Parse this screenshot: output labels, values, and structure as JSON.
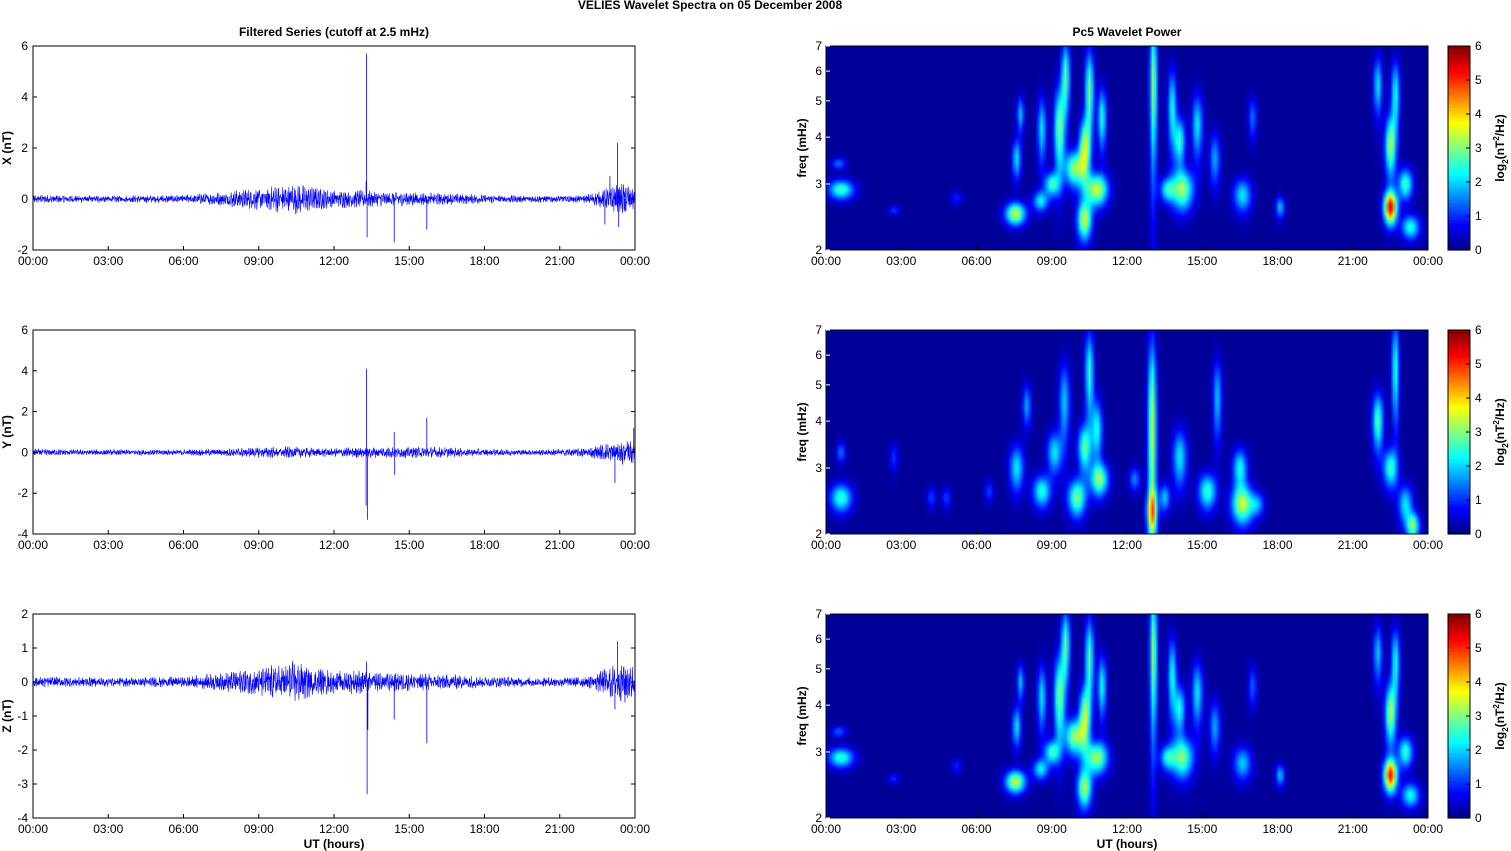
{
  "figure": {
    "suptitle": "VELIES Wavelet Spectra on 05 December  2008",
    "left_title": "Filtered Series (cutoff at 2.5 mHz)",
    "right_title": "Pc5 Wavelet Power",
    "xlabel": "UT (hours)",
    "freq_label": "freq (mHz)",
    "cbar_label_parts": [
      "log",
      "2",
      "(nT",
      "2",
      "/Hz)"
    ]
  },
  "chart_data": [
    {
      "type": "line",
      "title": "Filtered Series (cutoff at 2.5 mHz)",
      "ylabel": "X (nT)",
      "xlim": [
        0,
        24
      ],
      "ylim": [
        -2,
        6
      ],
      "yticks": [
        "-2",
        "0",
        "2",
        "4",
        "6"
      ],
      "xticks": [
        "00:00",
        "03:00",
        "06:00",
        "09:00",
        "12:00",
        "15:00",
        "18:00",
        "21:00",
        "00:00"
      ],
      "color": "#0000ff",
      "envelope": [
        [
          0,
          0.12
        ],
        [
          2,
          0.1
        ],
        [
          4,
          0.1
        ],
        [
          6,
          0.12
        ],
        [
          7.7,
          0.2
        ],
        [
          8,
          0.25
        ],
        [
          9,
          0.3
        ],
        [
          10,
          0.4
        ],
        [
          10.5,
          0.45
        ],
        [
          11,
          0.35
        ],
        [
          12,
          0.25
        ],
        [
          13,
          0.25
        ],
        [
          14,
          0.2
        ],
        [
          15,
          0.2
        ],
        [
          16,
          0.18
        ],
        [
          18,
          0.12
        ],
        [
          20,
          0.1
        ],
        [
          22,
          0.12
        ],
        [
          22.5,
          0.2
        ],
        [
          23,
          0.35
        ],
        [
          23.5,
          0.45
        ],
        [
          24,
          0.35
        ]
      ],
      "spikes": [
        [
          13.3,
          5.7
        ],
        [
          13.32,
          -1.5
        ],
        [
          13.28,
          0.7
        ],
        [
          14.4,
          -1.7
        ],
        [
          15.7,
          -1.2
        ],
        [
          22.8,
          -1
        ],
        [
          23.3,
          2.2
        ],
        [
          23.35,
          -1.1
        ],
        [
          23,
          0.9
        ],
        [
          23.6,
          -0.5
        ]
      ]
    },
    {
      "type": "line",
      "ylabel": "Y (nT)",
      "xlim": [
        0,
        24
      ],
      "ylim": [
        -4,
        6
      ],
      "yticks": [
        "-4",
        "-2",
        "0",
        "2",
        "4",
        "6"
      ],
      "xticks": [
        "00:00",
        "03:00",
        "06:00",
        "09:00",
        "12:00",
        "15:00",
        "18:00",
        "21:00",
        "00:00"
      ],
      "color": "#0000ff",
      "envelope": [
        [
          0,
          0.12
        ],
        [
          2,
          0.1
        ],
        [
          4,
          0.1
        ],
        [
          6,
          0.1
        ],
        [
          8,
          0.15
        ],
        [
          10,
          0.2
        ],
        [
          11,
          0.18
        ],
        [
          12,
          0.15
        ],
        [
          13,
          0.2
        ],
        [
          14,
          0.2
        ],
        [
          16,
          0.2
        ],
        [
          18,
          0.12
        ],
        [
          20,
          0.1
        ],
        [
          22,
          0.15
        ],
        [
          22.8,
          0.3
        ],
        [
          23.5,
          0.4
        ],
        [
          24,
          0.4
        ]
      ],
      "spikes": [
        [
          13.3,
          4.1
        ],
        [
          13.33,
          -3.3
        ],
        [
          13.28,
          -2.6
        ],
        [
          14.4,
          1.0
        ],
        [
          14.42,
          -1.1
        ],
        [
          15.7,
          1.7
        ],
        [
          23.2,
          -1.5
        ],
        [
          23.95,
          1.2
        ],
        [
          23.5,
          -0.6
        ]
      ]
    },
    {
      "type": "line",
      "ylabel": "Z (nT)",
      "xlim": [
        0,
        24
      ],
      "ylim": [
        -4,
        2
      ],
      "yticks": [
        "-4",
        "-3",
        "-2",
        "-1",
        "0",
        "1",
        "2"
      ],
      "xticks": [
        "00:00",
        "03:00",
        "06:00",
        "09:00",
        "12:00",
        "15:00",
        "18:00",
        "21:00",
        "00:00"
      ],
      "xlabel": "UT (hours)",
      "color": "#0000ff",
      "envelope": [
        [
          0,
          0.12
        ],
        [
          2,
          0.1
        ],
        [
          4,
          0.1
        ],
        [
          6,
          0.12
        ],
        [
          7.7,
          0.2
        ],
        [
          8,
          0.25
        ],
        [
          9,
          0.3
        ],
        [
          10,
          0.4
        ],
        [
          10.5,
          0.45
        ],
        [
          11,
          0.35
        ],
        [
          12,
          0.25
        ],
        [
          13,
          0.25
        ],
        [
          14,
          0.2
        ],
        [
          15,
          0.2
        ],
        [
          16,
          0.18
        ],
        [
          18,
          0.12
        ],
        [
          20,
          0.1
        ],
        [
          22,
          0.12
        ],
        [
          22.5,
          0.2
        ],
        [
          23,
          0.35
        ],
        [
          23.5,
          0.45
        ],
        [
          24,
          0.35
        ]
      ],
      "spikes": [
        [
          13.3,
          0.6
        ],
        [
          13.32,
          -3.3
        ],
        [
          13.35,
          -1.4
        ],
        [
          14.4,
          -1.1
        ],
        [
          15.7,
          -1.8
        ],
        [
          23.2,
          -0.8
        ],
        [
          23.3,
          1.2
        ],
        [
          23.6,
          -0.6
        ]
      ]
    },
    {
      "type": "heatmap",
      "title": "Pc5 Wavelet Power",
      "ylabel": "freq (mHz)",
      "yscale": "log",
      "xlim": [
        0,
        24
      ],
      "ylim": [
        2,
        7
      ],
      "yticks": [
        "2",
        "3",
        "4",
        "5",
        "6",
        "7"
      ],
      "xticks": [
        "00:00",
        "03:00",
        "06:00",
        "09:00",
        "12:00",
        "15:00",
        "18:00",
        "21:00",
        "00:00"
      ],
      "colorbar": {
        "range": [
          0,
          6
        ],
        "ticks": [
          "0",
          "1",
          "2",
          "3",
          "4",
          "5",
          "6"
        ],
        "colormap": "jet"
      },
      "blobs": [
        [
          0.6,
          2.9,
          0.35,
          0.12,
          2.5
        ],
        [
          0.5,
          3.4,
          0.2,
          0.08,
          1.3
        ],
        [
          2.7,
          2.55,
          0.15,
          0.05,
          1.0
        ],
        [
          5.2,
          2.75,
          0.15,
          0.08,
          0.8
        ],
        [
          7.55,
          2.5,
          0.28,
          0.12,
          3.3
        ],
        [
          7.6,
          3.5,
          0.12,
          0.3,
          2.0
        ],
        [
          7.75,
          4.6,
          0.1,
          0.35,
          1.8
        ],
        [
          8.55,
          2.7,
          0.22,
          0.12,
          2.0
        ],
        [
          8.6,
          4.2,
          0.12,
          0.6,
          2.0
        ],
        [
          9.0,
          3.0,
          0.2,
          0.15,
          2.4
        ],
        [
          9.3,
          4.2,
          0.15,
          0.8,
          2.8
        ],
        [
          9.55,
          5.8,
          0.12,
          0.9,
          2.6
        ],
        [
          9.9,
          3.3,
          0.25,
          0.25,
          3.0
        ],
        [
          10.3,
          2.4,
          0.2,
          0.2,
          3.2
        ],
        [
          10.3,
          3.7,
          0.15,
          0.5,
          3.2
        ],
        [
          10.5,
          5.3,
          0.12,
          1.0,
          2.8
        ],
        [
          10.8,
          2.9,
          0.3,
          0.2,
          3.3
        ],
        [
          11.0,
          4.5,
          0.12,
          0.6,
          2.3
        ],
        [
          13.05,
          5.5,
          0.1,
          1.8,
          3.0
        ],
        [
          13.6,
          2.9,
          0.2,
          0.15,
          2.0
        ],
        [
          13.8,
          4.8,
          0.12,
          0.8,
          2.2
        ],
        [
          14.2,
          2.9,
          0.3,
          0.25,
          3.0
        ],
        [
          14.1,
          3.9,
          0.15,
          0.4,
          2.4
        ],
        [
          14.8,
          4.3,
          0.15,
          0.6,
          2.0
        ],
        [
          15.5,
          3.5,
          0.15,
          0.4,
          1.6
        ],
        [
          16.6,
          2.8,
          0.25,
          0.2,
          2.0
        ],
        [
          17.0,
          4.5,
          0.12,
          0.4,
          1.3
        ],
        [
          18.1,
          2.6,
          0.12,
          0.12,
          1.8
        ],
        [
          22.0,
          5.5,
          0.12,
          0.7,
          2.0
        ],
        [
          22.5,
          2.6,
          0.18,
          0.18,
          5.3
        ],
        [
          22.5,
          3.8,
          0.15,
          0.5,
          3.0
        ],
        [
          22.7,
          5.2,
          0.12,
          0.8,
          2.2
        ],
        [
          23.1,
          3.0,
          0.2,
          0.2,
          2.5
        ],
        [
          23.3,
          2.3,
          0.25,
          0.12,
          2.3
        ]
      ]
    },
    {
      "type": "heatmap",
      "ylabel": "freq (mHz)",
      "yscale": "log",
      "xlim": [
        0,
        24
      ],
      "ylim": [
        2,
        7
      ],
      "yticks": [
        "2",
        "3",
        "4",
        "5",
        "6",
        "7"
      ],
      "xticks": [
        "00:00",
        "03:00",
        "06:00",
        "09:00",
        "12:00",
        "15:00",
        "18:00",
        "21:00",
        "00:00"
      ],
      "colorbar": {
        "range": [
          0,
          6
        ],
        "ticks": [
          "0",
          "1",
          "2",
          "3",
          "4",
          "5",
          "6"
        ],
        "colormap": "jet"
      },
      "blobs": [
        [
          0.6,
          2.5,
          0.3,
          0.15,
          2.4
        ],
        [
          0.6,
          3.3,
          0.12,
          0.15,
          1.3
        ],
        [
          2.7,
          3.2,
          0.12,
          0.2,
          0.9
        ],
        [
          4.2,
          2.5,
          0.12,
          0.12,
          1.0
        ],
        [
          4.8,
          2.5,
          0.12,
          0.12,
          1.0
        ],
        [
          6.5,
          2.6,
          0.12,
          0.12,
          1.0
        ],
        [
          7.6,
          3.0,
          0.2,
          0.3,
          2.0
        ],
        [
          8.0,
          4.4,
          0.12,
          0.4,
          1.6
        ],
        [
          8.6,
          2.6,
          0.25,
          0.18,
          2.3
        ],
        [
          9.1,
          3.3,
          0.2,
          0.3,
          2.0
        ],
        [
          9.5,
          4.5,
          0.15,
          0.8,
          1.8
        ],
        [
          10.0,
          2.5,
          0.25,
          0.2,
          2.8
        ],
        [
          10.3,
          3.4,
          0.18,
          0.35,
          2.6
        ],
        [
          10.5,
          5.4,
          0.12,
          1.0,
          2.4
        ],
        [
          10.9,
          2.8,
          0.25,
          0.2,
          2.8
        ],
        [
          10.8,
          3.8,
          0.15,
          0.5,
          2.2
        ],
        [
          12.3,
          2.8,
          0.15,
          0.15,
          1.4
        ],
        [
          13.0,
          3.8,
          0.12,
          1.8,
          3.2
        ],
        [
          13.0,
          2.3,
          0.15,
          0.2,
          2.6
        ],
        [
          13.5,
          2.5,
          0.15,
          0.15,
          1.8
        ],
        [
          14.1,
          3.2,
          0.2,
          0.4,
          2.0
        ],
        [
          15.2,
          2.6,
          0.25,
          0.2,
          2.4
        ],
        [
          15.6,
          4.6,
          0.12,
          0.8,
          1.8
        ],
        [
          16.6,
          2.4,
          0.3,
          0.2,
          3.2
        ],
        [
          16.5,
          3.0,
          0.2,
          0.25,
          2.2
        ],
        [
          17.2,
          2.4,
          0.2,
          0.12,
          1.4
        ],
        [
          22.0,
          4.0,
          0.15,
          0.5,
          2.6
        ],
        [
          22.5,
          3.0,
          0.2,
          0.25,
          2.4
        ],
        [
          22.7,
          5.5,
          0.1,
          1.2,
          2.4
        ],
        [
          23.1,
          2.4,
          0.2,
          0.2,
          2.0
        ],
        [
          23.4,
          2.1,
          0.18,
          0.12,
          2.8
        ]
      ]
    },
    {
      "type": "heatmap",
      "ylabel": "freq (mHz)",
      "yscale": "log",
      "xlim": [
        0,
        24
      ],
      "ylim": [
        2,
        7
      ],
      "yticks": [
        "2",
        "3",
        "4",
        "5",
        "6",
        "7"
      ],
      "xticks": [
        "00:00",
        "03:00",
        "06:00",
        "09:00",
        "12:00",
        "15:00",
        "18:00",
        "21:00",
        "00:00"
      ],
      "xlabel": "UT (hours)",
      "colorbar": {
        "range": [
          0,
          6
        ],
        "ticks": [
          "0",
          "1",
          "2",
          "3",
          "4",
          "5",
          "6"
        ],
        "colormap": "jet"
      },
      "blobs": [
        [
          0.6,
          2.9,
          0.35,
          0.12,
          2.4
        ],
        [
          0.5,
          3.4,
          0.2,
          0.08,
          1.2
        ],
        [
          2.7,
          2.55,
          0.15,
          0.05,
          0.9
        ],
        [
          5.2,
          2.75,
          0.15,
          0.08,
          0.8
        ],
        [
          7.55,
          2.5,
          0.28,
          0.12,
          3.3
        ],
        [
          7.6,
          3.5,
          0.12,
          0.3,
          2.0
        ],
        [
          7.75,
          4.6,
          0.1,
          0.35,
          1.8
        ],
        [
          8.55,
          2.7,
          0.22,
          0.12,
          2.0
        ],
        [
          8.6,
          4.2,
          0.12,
          0.6,
          2.0
        ],
        [
          9.0,
          3.0,
          0.2,
          0.15,
          2.4
        ],
        [
          9.3,
          4.2,
          0.15,
          0.8,
          2.8
        ],
        [
          9.55,
          5.8,
          0.12,
          0.9,
          2.6
        ],
        [
          9.9,
          3.3,
          0.25,
          0.25,
          3.0
        ],
        [
          10.3,
          2.4,
          0.2,
          0.2,
          3.0
        ],
        [
          10.3,
          3.7,
          0.15,
          0.5,
          3.0
        ],
        [
          10.5,
          5.3,
          0.12,
          1.0,
          2.6
        ],
        [
          10.8,
          2.9,
          0.3,
          0.2,
          3.0
        ],
        [
          11.0,
          4.5,
          0.12,
          0.6,
          2.2
        ],
        [
          13.05,
          5.5,
          0.1,
          1.8,
          3.0
        ],
        [
          13.6,
          2.9,
          0.2,
          0.15,
          2.0
        ],
        [
          13.8,
          4.8,
          0.12,
          0.8,
          2.2
        ],
        [
          14.2,
          2.9,
          0.3,
          0.25,
          2.8
        ],
        [
          14.1,
          3.9,
          0.15,
          0.4,
          2.2
        ],
        [
          14.8,
          4.3,
          0.15,
          0.6,
          2.0
        ],
        [
          15.5,
          3.5,
          0.15,
          0.4,
          1.6
        ],
        [
          16.6,
          2.8,
          0.25,
          0.2,
          1.8
        ],
        [
          17.0,
          4.5,
          0.12,
          0.4,
          1.2
        ],
        [
          18.1,
          2.6,
          0.12,
          0.12,
          1.8
        ],
        [
          22.0,
          5.5,
          0.12,
          0.7,
          1.8
        ],
        [
          22.5,
          2.6,
          0.18,
          0.18,
          5.0
        ],
        [
          22.5,
          3.8,
          0.15,
          0.5,
          3.0
        ],
        [
          22.7,
          5.2,
          0.12,
          0.8,
          2.2
        ],
        [
          23.1,
          3.0,
          0.2,
          0.2,
          2.4
        ],
        [
          23.3,
          2.3,
          0.25,
          0.12,
          2.2
        ]
      ]
    }
  ]
}
